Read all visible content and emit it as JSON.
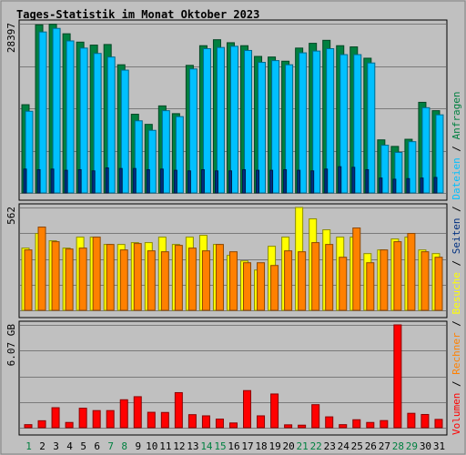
{
  "colors": {
    "background": "#c0c0c0",
    "panel": "#c0c0c0",
    "grid": "#7a7a7a",
    "title": "#0000ff",
    "anfragen": "#008040",
    "dateien": "#00c0ff",
    "seiten": "#003080",
    "besuche": "#ffff00",
    "rechner": "#ff8000",
    "volumen": "#ff0000",
    "weekday": "#000000",
    "weekend": "#008040"
  },
  "chart_data": {
    "type": "bar",
    "title": "Tages-Statistik im Monat Oktober 2023",
    "categories": [
      "1",
      "2",
      "3",
      "4",
      "5",
      "6",
      "7",
      "8",
      "9",
      "10",
      "11",
      "12",
      "13",
      "14",
      "15",
      "16",
      "17",
      "18",
      "19",
      "20",
      "21",
      "22",
      "23",
      "24",
      "25",
      "26",
      "27",
      "28",
      "29",
      "30",
      "31"
    ],
    "weekend_days": [
      "1",
      "7",
      "8",
      "14",
      "15",
      "21",
      "22",
      "28",
      "29"
    ],
    "panels": [
      {
        "id": "top",
        "ymax_label": "28397",
        "ymax": 28397,
        "series": [
          {
            "name": "Anfragen",
            "color_key": "anfragen",
            "values": [
              14800,
              28200,
              28300,
              26700,
              25300,
              24800,
              24900,
              21500,
              13200,
              11500,
              14600,
              13300,
              21400,
              24700,
              25700,
              25200,
              24700,
              22900,
              22800,
              22100,
              24300,
              25100,
              25600,
              24700,
              24500,
              22600,
              8900,
              7800,
              9000,
              15200,
              13800
            ]
          },
          {
            "name": "Dateien",
            "color_key": "dateien",
            "values": [
              13700,
              27000,
              27600,
              25500,
              24300,
              23400,
              22800,
              20600,
              12100,
              10500,
              13800,
              12800,
              20800,
              24200,
              24400,
              24600,
              23900,
              21900,
              22200,
              21500,
              23500,
              23800,
              24200,
              23200,
              23200,
              21800,
              8000,
              6800,
              8600,
              14300,
              13100
            ]
          },
          {
            "name": "Seiten",
            "color_key": "seiten",
            "values": [
              4000,
              3900,
              4000,
              3800,
              3900,
              3700,
              4200,
              4100,
              4100,
              3900,
              4000,
              3800,
              3700,
              3900,
              3700,
              3700,
              3900,
              3800,
              3800,
              3900,
              3800,
              3700,
              4000,
              4400,
              4300,
              3900,
              2500,
              2300,
              2400,
              2500,
              2600
            ]
          }
        ]
      },
      {
        "id": "middle",
        "ymax_label": "562",
        "ymax": 562,
        "series": [
          {
            "name": "Besuche",
            "color_key": "besuche",
            "values": [
              340,
              420,
              380,
              340,
              400,
              400,
              360,
              360,
              370,
              370,
              400,
              360,
              400,
              410,
              360,
              300,
              270,
              220,
              350,
              400,
              562,
              500,
              440,
              400,
              400,
              310,
              330,
              390,
              400,
              330,
              310
            ]
          },
          {
            "name": "Rechner",
            "color_key": "rechner",
            "values": [
              330,
              455,
              375,
              335,
              340,
              400,
              360,
              330,
              365,
              325,
              320,
              355,
              340,
              325,
              360,
              320,
              260,
              260,
              245,
              325,
              320,
              370,
              360,
              290,
              450,
              260,
              330,
              375,
              420,
              320,
              290
            ]
          }
        ]
      },
      {
        "id": "bottom",
        "ymax_label": "6.07 GB",
        "ymax": 6.07,
        "series": [
          {
            "name": "Volumen",
            "color_key": "volumen",
            "values": [
              0.18,
              0.41,
              1.18,
              0.31,
              1.15,
              1.01,
              1.01,
              1.65,
              1.83,
              0.91,
              0.9,
              2.07,
              0.77,
              0.7,
              0.51,
              0.28,
              2.19,
              0.7,
              1.99,
              0.17,
              0.15,
              1.36,
              0.64,
              0.18,
              0.47,
              0.31,
              0.42,
              6.07,
              0.85,
              0.78,
              0.49
            ]
          }
        ]
      }
    ],
    "legend": [
      {
        "name": "Volumen",
        "color_key": "volumen"
      },
      {
        "name": "Rechner",
        "color_key": "rechner"
      },
      {
        "name": "Besuche",
        "color_key": "besuche"
      },
      {
        "name": "Seiten",
        "color_key": "seiten"
      },
      {
        "name": "Dateien",
        "color_key": "dateien"
      },
      {
        "name": "Anfragen",
        "color_key": "anfragen"
      }
    ],
    "legend_separator": " / ",
    "legend_placement": "right, vertical",
    "grid": true
  }
}
